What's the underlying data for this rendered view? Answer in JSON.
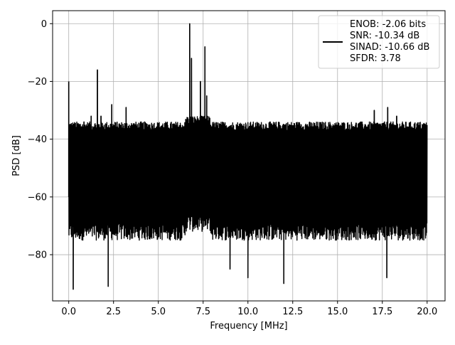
{
  "chart_data": {
    "type": "line",
    "title": "",
    "xlabel": "Frequency [MHz]",
    "ylabel": "PSD [dB]",
    "xlim": [
      -0.9,
      21.0
    ],
    "ylim": [
      -96,
      4.5
    ],
    "xticks": [
      0.0,
      2.5,
      5.0,
      7.5,
      10.0,
      12.5,
      15.0,
      17.5,
      20.0
    ],
    "xtick_labels": [
      "0.0",
      "2.5",
      "5.0",
      "7.5",
      "10.0",
      "12.5",
      "15.0",
      "17.5",
      "20.0"
    ],
    "yticks": [
      0,
      -20,
      -40,
      -60,
      -80
    ],
    "ytick_labels": [
      "0",
      "−20",
      "−40",
      "−60",
      "−80"
    ],
    "grid": true,
    "legend_position": "top-right",
    "legend": {
      "lines": [
        "ENOB: -2.06 bits",
        "SNR: -10.34 dB",
        "SINAD: -10.66 dB",
        "SFDR: 3.78"
      ]
    },
    "series": [
      {
        "color": "#000000",
        "x_range": [
          0.0,
          20.0
        ],
        "noise_floor_range": [
          -80,
          -35
        ],
        "typical_band": [
          -75,
          -37
        ],
        "peaks": [
          {
            "x": 0.0,
            "y": -20
          },
          {
            "x": 0.55,
            "y": -35
          },
          {
            "x": 0.85,
            "y": -34
          },
          {
            "x": 1.25,
            "y": -32
          },
          {
            "x": 1.6,
            "y": -16
          },
          {
            "x": 1.8,
            "y": -32
          },
          {
            "x": 2.4,
            "y": -28
          },
          {
            "x": 3.2,
            "y": -29
          },
          {
            "x": 6.75,
            "y": 0
          },
          {
            "x": 6.85,
            "y": -12
          },
          {
            "x": 7.35,
            "y": -20
          },
          {
            "x": 7.6,
            "y": -8
          },
          {
            "x": 7.7,
            "y": -25
          },
          {
            "x": 17.8,
            "y": -29
          },
          {
            "x": 17.05,
            "y": -30
          },
          {
            "x": 18.3,
            "y": -32
          }
        ],
        "dips": [
          {
            "x": 0.25,
            "y": -92
          },
          {
            "x": 2.2,
            "y": -91
          },
          {
            "x": 9.0,
            "y": -85
          },
          {
            "x": 10.0,
            "y": -88
          },
          {
            "x": 12.0,
            "y": -90
          },
          {
            "x": 17.75,
            "y": -88
          }
        ]
      }
    ]
  }
}
